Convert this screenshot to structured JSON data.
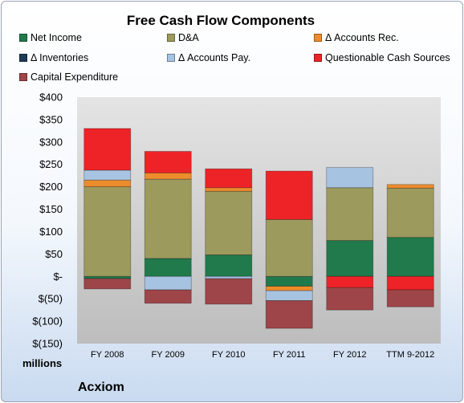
{
  "chart_data": {
    "type": "bar",
    "stacked": true,
    "title": "Free Cash Flow Components",
    "units_label": "millions",
    "company": "Acxiom",
    "categories": [
      "FY 2008",
      "FY 2009",
      "FY 2010",
      "FY 2011",
      "FY 2012",
      "TTM 9-2012"
    ],
    "y_tick_labels": [
      "$400",
      "$350",
      "$300",
      "$250",
      "$200",
      "$150",
      "$100",
      "$50",
      "$-",
      "$(50)",
      "$(100)",
      "$(150)"
    ],
    "ylim": [
      -150,
      400
    ],
    "legend_position": "top",
    "grid": false,
    "series": [
      {
        "name": "Net Income",
        "color": "#207a4c",
        "values": [
          -5,
          40,
          48,
          -22,
          80,
          87
        ]
      },
      {
        "name": "D&A",
        "color": "#9d9a5e",
        "values": [
          200,
          177,
          142,
          127,
          118,
          110
        ]
      },
      {
        "name": "Δ Accounts Rec.",
        "color": "#ed8c2c",
        "values": [
          15,
          14,
          8,
          -10,
          0,
          8
        ]
      },
      {
        "name": "Δ Inventories",
        "color": "#1f3a55",
        "values": [
          0,
          0,
          0,
          0,
          0,
          0
        ]
      },
      {
        "name": "Δ Accounts Pay.",
        "color": "#a7c3e2",
        "values": [
          22,
          -30,
          -5,
          -22,
          45,
          0
        ]
      },
      {
        "name": "Questionable Cash Sources",
        "color": "#ee2327",
        "values": [
          93,
          48,
          42,
          108,
          -25,
          -30
        ]
      },
      {
        "name": "Capital Expenditure",
        "color": "#9e4549",
        "values": [
          -23,
          -30,
          -57,
          -62,
          -50,
          -38
        ]
      }
    ]
  }
}
